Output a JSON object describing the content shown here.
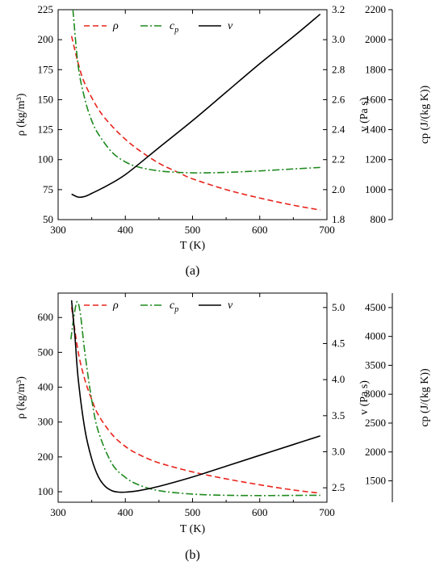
{
  "chart_data": [
    {
      "type": "line",
      "panel_label": "(a)",
      "xlabel": "T (K)",
      "xlim": [
        300,
        700
      ],
      "xticks": [
        300,
        400,
        500,
        600,
        700
      ],
      "axes": {
        "left": {
          "label": "ρ (kg/m³)",
          "lim": [
            50,
            225
          ],
          "ticks": [
            50,
            75,
            100,
            125,
            150,
            175,
            200,
            225
          ]
        },
        "right1": {
          "label": "v (Pa s)",
          "lim": [
            1.8,
            3.2
          ],
          "ticks": [
            1.8,
            2.0,
            2.2,
            2.4,
            2.6,
            2.8,
            3.0,
            3.2
          ]
        },
        "right2": {
          "label": "cp (J/(kg K))",
          "lim": [
            800,
            2200
          ],
          "ticks": [
            800,
            1000,
            1200,
            1400,
            1600,
            1800,
            2000,
            2200
          ]
        }
      },
      "legend": {
        "placement": "top-center",
        "entries": [
          "ρ",
          "cp",
          "v"
        ]
      },
      "grid": false,
      "series": [
        {
          "name": "ρ",
          "axis": "left",
          "color": "#e8241c",
          "style": "dashed",
          "x": [
            320,
            330,
            340,
            360,
            380,
            400,
            420,
            450,
            480,
            500,
            550,
            600,
            650,
            690
          ],
          "y": [
            203,
            180,
            163,
            142,
            128,
            117,
            108,
            97,
            89,
            84,
            75,
            68,
            62,
            58
          ]
        },
        {
          "name": "cp",
          "axis": "right2",
          "color": "#1f8a1f",
          "style": "dashdot",
          "x": [
            322,
            330,
            340,
            350,
            360,
            380,
            400,
            420,
            450,
            480,
            500,
            520,
            550,
            600,
            650,
            690
          ],
          "y": [
            2200,
            1820,
            1600,
            1460,
            1370,
            1250,
            1185,
            1150,
            1125,
            1115,
            1112,
            1112,
            1115,
            1125,
            1138,
            1148
          ]
        },
        {
          "name": "v",
          "axis": "right1",
          "color": "#000000",
          "style": "solid",
          "x": [
            320,
            330,
            340,
            350,
            370,
            400,
            450,
            500,
            550,
            600,
            650,
            690
          ],
          "y": [
            1.97,
            1.95,
            1.955,
            1.975,
            2.02,
            2.1,
            2.28,
            2.46,
            2.65,
            2.84,
            3.02,
            3.17
          ]
        }
      ]
    },
    {
      "type": "line",
      "panel_label": "(b)",
      "xlabel": "T (K)",
      "xlim": [
        300,
        700
      ],
      "xticks": [
        300,
        400,
        500,
        600,
        700
      ],
      "axes": {
        "left": {
          "label": "ρ (kg/m³)",
          "lim": [
            70,
            670
          ],
          "ticks": [
            100,
            200,
            300,
            400,
            500,
            600
          ]
        },
        "right1": {
          "label": "v (Pa s)",
          "lim": [
            2.3,
            5.2
          ],
          "ticks": [
            2.5,
            3.0,
            3.5,
            4.0,
            4.5,
            5.0
          ]
        },
        "right2": {
          "label": "cp (J/(kg K))",
          "lim": [
            1130,
            4750
          ],
          "ticks": [
            1500,
            2000,
            2500,
            3000,
            3500,
            4000,
            4500
          ]
        }
      },
      "legend": {
        "placement": "top-center",
        "entries": [
          "ρ",
          "cp",
          "v"
        ]
      },
      "grid": false,
      "series": [
        {
          "name": "ρ",
          "axis": "left",
          "color": "#e8241c",
          "style": "dashed",
          "x": [
            320,
            330,
            340,
            350,
            360,
            380,
            400,
            420,
            450,
            500,
            550,
            600,
            650,
            690
          ],
          "y": [
            630,
            500,
            420,
            365,
            320,
            265,
            230,
            207,
            183,
            157,
            137,
            120,
            105,
            96
          ]
        },
        {
          "name": "cp",
          "axis": "right2",
          "color": "#1f8a1f",
          "style": "dashdot",
          "x": [
            319,
            323,
            328,
            333,
            340,
            350,
            360,
            380,
            400,
            420,
            450,
            500,
            550,
            600,
            650,
            690
          ],
          "y": [
            3950,
            4300,
            4600,
            4400,
            3700,
            2900,
            2350,
            1800,
            1560,
            1430,
            1330,
            1270,
            1250,
            1245,
            1248,
            1250
          ]
        },
        {
          "name": "v",
          "axis": "right1",
          "color": "#000000",
          "style": "solid",
          "x": [
            320,
            325,
            330,
            340,
            350,
            360,
            370,
            380,
            390,
            400,
            420,
            450,
            500,
            550,
            600,
            650,
            690
          ],
          "y": [
            5.1,
            4.6,
            4.0,
            3.3,
            2.9,
            2.65,
            2.52,
            2.46,
            2.44,
            2.44,
            2.46,
            2.52,
            2.65,
            2.8,
            2.95,
            3.1,
            3.22
          ]
        }
      ]
    }
  ]
}
